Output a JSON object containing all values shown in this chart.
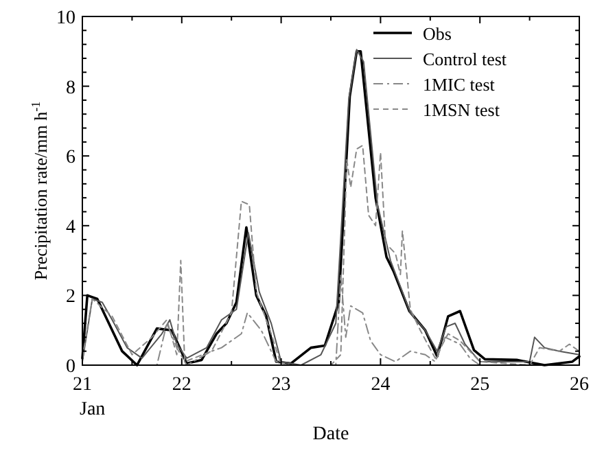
{
  "chart_data": {
    "type": "line",
    "xlabel": "Date",
    "ylabel": "Precipitation rate/mm h$^{-1}$",
    "annotations": [
      "Jan"
    ],
    "xlim": [
      21,
      26
    ],
    "xticks": [
      21,
      22,
      23,
      24,
      25,
      26
    ],
    "ylim": [
      0,
      10
    ],
    "yticks": [
      0,
      2,
      4,
      6,
      8,
      10
    ],
    "grid": false,
    "legend": "top right",
    "series": [
      {
        "name": "Obs",
        "color": "#000000",
        "line_style": "solid",
        "x": [
          21.0,
          21.05,
          21.15,
          21.25,
          21.4,
          21.55,
          21.75,
          21.9,
          22.05,
          22.2,
          22.35,
          22.45,
          22.55,
          22.65,
          22.75,
          22.85,
          22.95,
          23.1,
          23.3,
          23.44,
          23.58,
          23.69,
          23.76,
          23.8,
          23.95,
          24.06,
          24.13,
          24.29,
          24.45,
          24.57,
          24.68,
          24.8,
          24.94,
          25.05,
          25.37,
          25.65,
          25.93,
          26.0
        ],
        "values": [
          0.2,
          2.0,
          1.9,
          1.3,
          0.4,
          0.0,
          1.05,
          1.0,
          0.05,
          0.15,
          0.9,
          1.2,
          1.8,
          3.95,
          2.0,
          1.4,
          0.1,
          0.05,
          0.5,
          0.56,
          1.8,
          7.7,
          9.0,
          9.0,
          4.8,
          3.1,
          2.7,
          1.55,
          1.0,
          0.25,
          1.4,
          1.55,
          0.43,
          0.17,
          0.15,
          0.0,
          0.1,
          0.25
        ]
      },
      {
        "name": "Control test",
        "color": "#555555",
        "line_style": "solid",
        "x": [
          21.0,
          21.1,
          21.2,
          21.3,
          21.45,
          21.6,
          21.8,
          21.88,
          21.95,
          22.05,
          22.25,
          22.4,
          22.55,
          22.67,
          22.78,
          22.9,
          23.0,
          23.2,
          23.4,
          23.55,
          23.68,
          23.76,
          23.83,
          23.97,
          24.1,
          24.3,
          24.45,
          24.57,
          24.66,
          24.75,
          24.85,
          25.0,
          25.3,
          25.5,
          25.55,
          25.65,
          25.8,
          26.0
        ],
        "values": [
          0.1,
          1.9,
          1.8,
          1.3,
          0.5,
          0.2,
          0.9,
          1.3,
          0.6,
          0.2,
          0.5,
          1.3,
          1.6,
          3.8,
          2.1,
          1.2,
          0.1,
          0.0,
          0.3,
          1.2,
          7.6,
          9.05,
          8.7,
          4.6,
          3.0,
          1.5,
          1.0,
          0.4,
          1.1,
          1.2,
          0.6,
          0.1,
          0.1,
          0.1,
          0.8,
          0.5,
          0.4,
          0.3
        ]
      },
      {
        "name": "1MIC test",
        "color": "#888888",
        "line_style": "dashdot",
        "x": [
          21.0,
          21.75,
          21.85,
          21.95,
          22.05,
          22.3,
          22.4,
          22.5,
          22.6,
          22.66,
          22.8,
          22.95,
          23.1,
          23.55,
          23.6,
          23.65,
          23.7,
          23.82,
          23.9,
          24.0,
          24.15,
          24.3,
          24.45,
          24.55,
          24.65,
          24.8,
          24.9,
          25.0,
          26.0
        ],
        "values": [
          0.0,
          0.0,
          1.2,
          0.5,
          0.0,
          0.4,
          0.5,
          0.7,
          0.9,
          1.5,
          1.0,
          0.1,
          0.0,
          0.0,
          2.6,
          0.8,
          1.7,
          1.5,
          0.7,
          0.3,
          0.1,
          0.4,
          0.3,
          0.1,
          0.8,
          0.6,
          0.2,
          0.0,
          0.0
        ]
      },
      {
        "name": "1MSN test",
        "color": "#888888",
        "line_style": "dashed",
        "x": [
          21.0,
          21.1,
          21.3,
          21.5,
          21.7,
          21.85,
          21.95,
          21.99,
          22.03,
          22.3,
          22.5,
          22.6,
          22.68,
          22.75,
          22.9,
          23.0,
          23.5,
          23.6,
          23.66,
          23.7,
          23.76,
          23.82,
          23.88,
          23.95,
          24.0,
          24.05,
          24.15,
          24.2,
          24.22,
          24.3,
          24.4,
          24.55,
          24.68,
          24.8,
          25.0,
          25.5,
          25.6,
          25.8,
          25.9,
          26.0
        ],
        "values": [
          0.2,
          1.9,
          1.4,
          0.3,
          0.8,
          1.3,
          0.3,
          3.0,
          0.1,
          0.4,
          1.5,
          4.7,
          4.6,
          2.1,
          0.9,
          0.0,
          0.0,
          0.3,
          5.9,
          5.1,
          6.2,
          6.3,
          4.3,
          4.0,
          6.1,
          3.5,
          3.2,
          2.6,
          3.85,
          1.6,
          1.0,
          0.2,
          0.9,
          0.7,
          0.1,
          0.0,
          0.5,
          0.4,
          0.6,
          0.4
        ]
      }
    ]
  }
}
